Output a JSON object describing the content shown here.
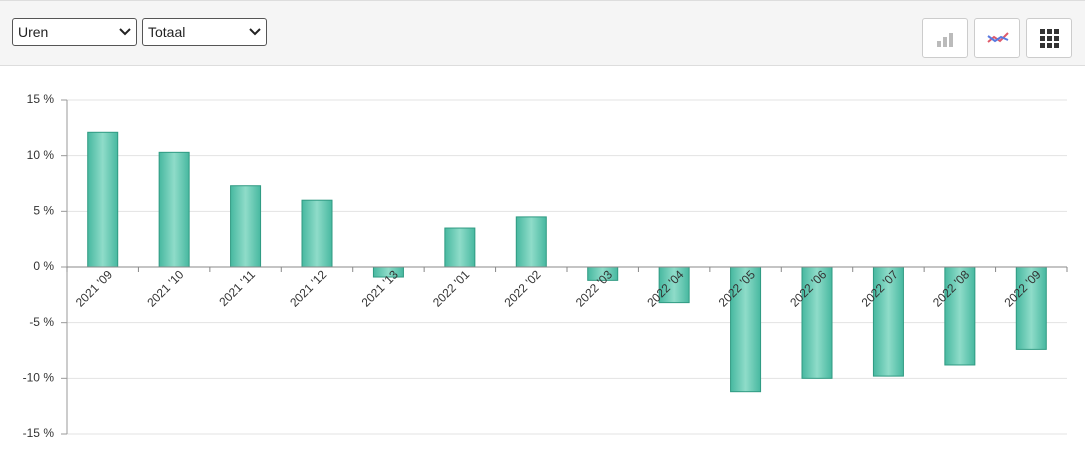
{
  "toolbar": {
    "selects": [
      "Uren",
      "Totaal"
    ]
  },
  "chart_data": {
    "type": "bar",
    "categories": [
      "2021 '09",
      "2021 '10",
      "2021 '11",
      "2021 '12",
      "2021 '13",
      "2022 '01",
      "2022 '02",
      "2022 '03",
      "2022 '04",
      "2022 '05",
      "2022 '06",
      "2022 '07",
      "2022 '08",
      "2022 '09"
    ],
    "values": [
      12.1,
      10.3,
      7.3,
      6.0,
      -0.9,
      3.5,
      4.5,
      -1.2,
      -3.2,
      -11.2,
      -10.0,
      -9.8,
      -8.8,
      -7.4
    ],
    "color": "#47b8a0",
    "ylim": [
      -15,
      15
    ],
    "yticks": [
      {
        "value": -15,
        "label": "-15 %"
      },
      {
        "value": -10,
        "label": "-10 %"
      },
      {
        "value": -5,
        "label": "-5 %"
      },
      {
        "value": 0,
        "label": "0 %"
      },
      {
        "value": 5,
        "label": "5 %"
      },
      {
        "value": 10,
        "label": "10 %"
      },
      {
        "value": 15,
        "label": "15 %"
      }
    ],
    "grid": true
  }
}
